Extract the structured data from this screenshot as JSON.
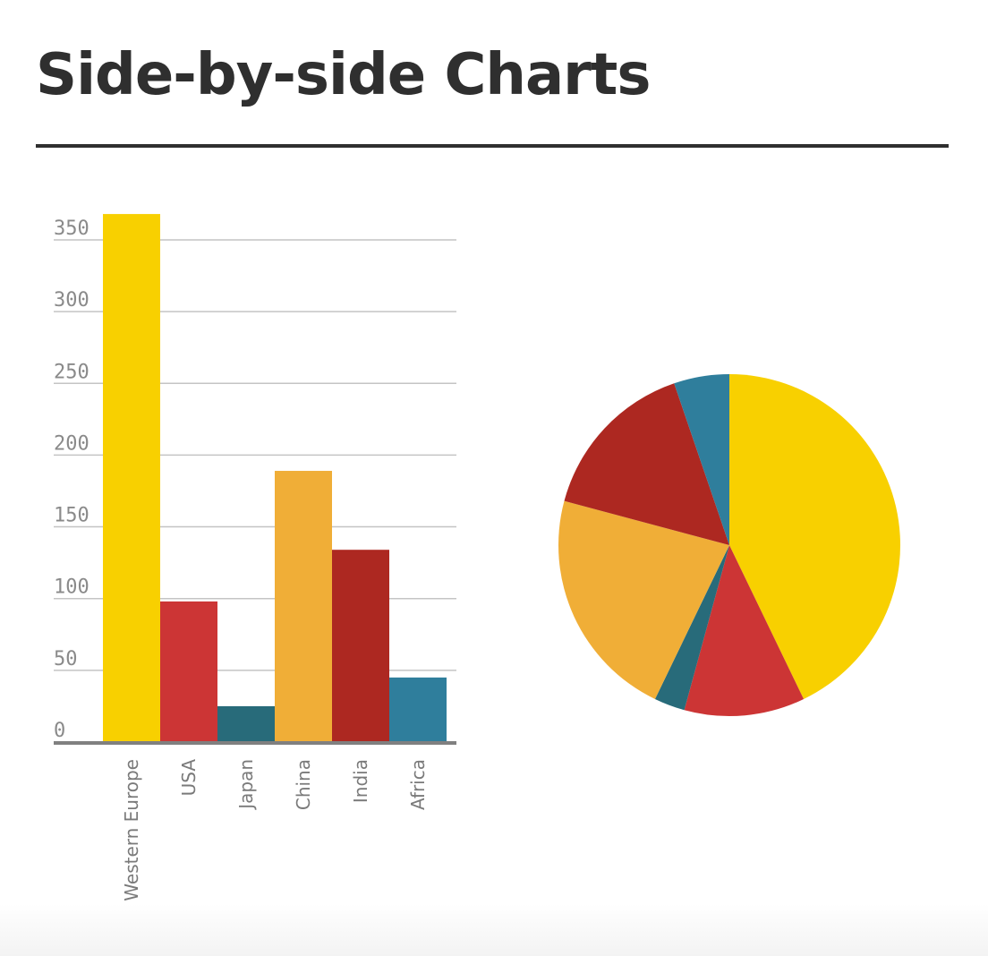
{
  "page": {
    "title": "Side-by-side Charts"
  },
  "chart_data": [
    {
      "type": "bar",
      "categories": [
        "Western Europe",
        "USA",
        "Japan",
        "China",
        "India",
        "Africa"
      ],
      "values": [
        368,
        98,
        25,
        189,
        134,
        45
      ],
      "colors": [
        "#f8d000",
        "#cc3535",
        "#286b7a",
        "#f0ae37",
        "#ad2821",
        "#2f7e9c"
      ],
      "yticks": [
        0,
        50,
        100,
        150,
        200,
        250,
        300,
        350
      ],
      "ylim": [
        0,
        350
      ],
      "grid": true
    },
    {
      "type": "pie",
      "labels": [
        "Western Europe",
        "USA",
        "Japan",
        "China",
        "India",
        "Africa"
      ],
      "values": [
        368,
        98,
        25,
        189,
        134,
        45
      ],
      "colors": [
        "#f8d000",
        "#cc3535",
        "#286b7a",
        "#f0ae37",
        "#ad2821",
        "#2f7e9c"
      ]
    }
  ]
}
